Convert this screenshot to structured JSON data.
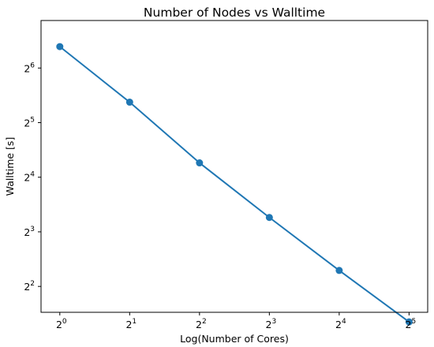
{
  "chart_data": {
    "type": "line",
    "title": "Number of Nodes vs Walltime",
    "xlabel": "Log(Number of Cores)",
    "ylabel": "Walltime [s]",
    "x_scale": "log2",
    "y_scale": "log2",
    "xlim": [
      0.83,
      38.5
    ],
    "ylim": [
      2.88,
      117
    ],
    "x_ticks": [
      {
        "value": 1,
        "base": "2",
        "exp": "0"
      },
      {
        "value": 2,
        "base": "2",
        "exp": "1"
      },
      {
        "value": 4,
        "base": "2",
        "exp": "2"
      },
      {
        "value": 8,
        "base": "2",
        "exp": "3"
      },
      {
        "value": 16,
        "base": "2",
        "exp": "4"
      },
      {
        "value": 32,
        "base": "2",
        "exp": "5"
      }
    ],
    "y_ticks": [
      {
        "value": 4,
        "base": "2",
        "exp": "2"
      },
      {
        "value": 8,
        "base": "2",
        "exp": "3"
      },
      {
        "value": 16,
        "base": "2",
        "exp": "4"
      },
      {
        "value": 32,
        "base": "2",
        "exp": "5"
      },
      {
        "value": 64,
        "base": "2",
        "exp": "6"
      }
    ],
    "grid": false,
    "series": [
      {
        "color": "#1f77b4",
        "x": [
          1,
          2,
          4,
          8,
          16,
          32
        ],
        "y": [
          84,
          41.5,
          19.2,
          9.6,
          4.9,
          2.55
        ]
      }
    ]
  }
}
